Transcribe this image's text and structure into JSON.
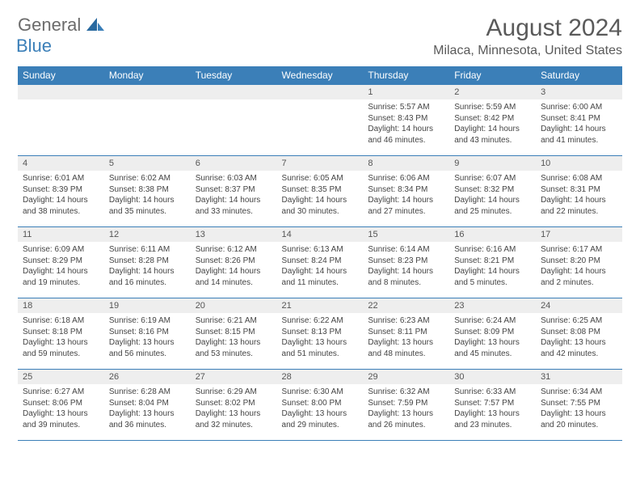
{
  "logo": {
    "general": "General",
    "blue": "Blue"
  },
  "title": "August 2024",
  "location": "Milaca, Minnesota, United States",
  "header_bg": "#3b7fb8",
  "weekdays": [
    "Sunday",
    "Monday",
    "Tuesday",
    "Wednesday",
    "Thursday",
    "Friday",
    "Saturday"
  ],
  "weeks": [
    [
      null,
      null,
      null,
      null,
      {
        "n": "1",
        "sr": "Sunrise: 5:57 AM",
        "ss": "Sunset: 8:43 PM",
        "dl1": "Daylight: 14 hours",
        "dl2": "and 46 minutes."
      },
      {
        "n": "2",
        "sr": "Sunrise: 5:59 AM",
        "ss": "Sunset: 8:42 PM",
        "dl1": "Daylight: 14 hours",
        "dl2": "and 43 minutes."
      },
      {
        "n": "3",
        "sr": "Sunrise: 6:00 AM",
        "ss": "Sunset: 8:41 PM",
        "dl1": "Daylight: 14 hours",
        "dl2": "and 41 minutes."
      }
    ],
    [
      {
        "n": "4",
        "sr": "Sunrise: 6:01 AM",
        "ss": "Sunset: 8:39 PM",
        "dl1": "Daylight: 14 hours",
        "dl2": "and 38 minutes."
      },
      {
        "n": "5",
        "sr": "Sunrise: 6:02 AM",
        "ss": "Sunset: 8:38 PM",
        "dl1": "Daylight: 14 hours",
        "dl2": "and 35 minutes."
      },
      {
        "n": "6",
        "sr": "Sunrise: 6:03 AM",
        "ss": "Sunset: 8:37 PM",
        "dl1": "Daylight: 14 hours",
        "dl2": "and 33 minutes."
      },
      {
        "n": "7",
        "sr": "Sunrise: 6:05 AM",
        "ss": "Sunset: 8:35 PM",
        "dl1": "Daylight: 14 hours",
        "dl2": "and 30 minutes."
      },
      {
        "n": "8",
        "sr": "Sunrise: 6:06 AM",
        "ss": "Sunset: 8:34 PM",
        "dl1": "Daylight: 14 hours",
        "dl2": "and 27 minutes."
      },
      {
        "n": "9",
        "sr": "Sunrise: 6:07 AM",
        "ss": "Sunset: 8:32 PM",
        "dl1": "Daylight: 14 hours",
        "dl2": "and 25 minutes."
      },
      {
        "n": "10",
        "sr": "Sunrise: 6:08 AM",
        "ss": "Sunset: 8:31 PM",
        "dl1": "Daylight: 14 hours",
        "dl2": "and 22 minutes."
      }
    ],
    [
      {
        "n": "11",
        "sr": "Sunrise: 6:09 AM",
        "ss": "Sunset: 8:29 PM",
        "dl1": "Daylight: 14 hours",
        "dl2": "and 19 minutes."
      },
      {
        "n": "12",
        "sr": "Sunrise: 6:11 AM",
        "ss": "Sunset: 8:28 PM",
        "dl1": "Daylight: 14 hours",
        "dl2": "and 16 minutes."
      },
      {
        "n": "13",
        "sr": "Sunrise: 6:12 AM",
        "ss": "Sunset: 8:26 PM",
        "dl1": "Daylight: 14 hours",
        "dl2": "and 14 minutes."
      },
      {
        "n": "14",
        "sr": "Sunrise: 6:13 AM",
        "ss": "Sunset: 8:24 PM",
        "dl1": "Daylight: 14 hours",
        "dl2": "and 11 minutes."
      },
      {
        "n": "15",
        "sr": "Sunrise: 6:14 AM",
        "ss": "Sunset: 8:23 PM",
        "dl1": "Daylight: 14 hours",
        "dl2": "and 8 minutes."
      },
      {
        "n": "16",
        "sr": "Sunrise: 6:16 AM",
        "ss": "Sunset: 8:21 PM",
        "dl1": "Daylight: 14 hours",
        "dl2": "and 5 minutes."
      },
      {
        "n": "17",
        "sr": "Sunrise: 6:17 AM",
        "ss": "Sunset: 8:20 PM",
        "dl1": "Daylight: 14 hours",
        "dl2": "and 2 minutes."
      }
    ],
    [
      {
        "n": "18",
        "sr": "Sunrise: 6:18 AM",
        "ss": "Sunset: 8:18 PM",
        "dl1": "Daylight: 13 hours",
        "dl2": "and 59 minutes."
      },
      {
        "n": "19",
        "sr": "Sunrise: 6:19 AM",
        "ss": "Sunset: 8:16 PM",
        "dl1": "Daylight: 13 hours",
        "dl2": "and 56 minutes."
      },
      {
        "n": "20",
        "sr": "Sunrise: 6:21 AM",
        "ss": "Sunset: 8:15 PM",
        "dl1": "Daylight: 13 hours",
        "dl2": "and 53 minutes."
      },
      {
        "n": "21",
        "sr": "Sunrise: 6:22 AM",
        "ss": "Sunset: 8:13 PM",
        "dl1": "Daylight: 13 hours",
        "dl2": "and 51 minutes."
      },
      {
        "n": "22",
        "sr": "Sunrise: 6:23 AM",
        "ss": "Sunset: 8:11 PM",
        "dl1": "Daylight: 13 hours",
        "dl2": "and 48 minutes."
      },
      {
        "n": "23",
        "sr": "Sunrise: 6:24 AM",
        "ss": "Sunset: 8:09 PM",
        "dl1": "Daylight: 13 hours",
        "dl2": "and 45 minutes."
      },
      {
        "n": "24",
        "sr": "Sunrise: 6:25 AM",
        "ss": "Sunset: 8:08 PM",
        "dl1": "Daylight: 13 hours",
        "dl2": "and 42 minutes."
      }
    ],
    [
      {
        "n": "25",
        "sr": "Sunrise: 6:27 AM",
        "ss": "Sunset: 8:06 PM",
        "dl1": "Daylight: 13 hours",
        "dl2": "and 39 minutes."
      },
      {
        "n": "26",
        "sr": "Sunrise: 6:28 AM",
        "ss": "Sunset: 8:04 PM",
        "dl1": "Daylight: 13 hours",
        "dl2": "and 36 minutes."
      },
      {
        "n": "27",
        "sr": "Sunrise: 6:29 AM",
        "ss": "Sunset: 8:02 PM",
        "dl1": "Daylight: 13 hours",
        "dl2": "and 32 minutes."
      },
      {
        "n": "28",
        "sr": "Sunrise: 6:30 AM",
        "ss": "Sunset: 8:00 PM",
        "dl1": "Daylight: 13 hours",
        "dl2": "and 29 minutes."
      },
      {
        "n": "29",
        "sr": "Sunrise: 6:32 AM",
        "ss": "Sunset: 7:59 PM",
        "dl1": "Daylight: 13 hours",
        "dl2": "and 26 minutes."
      },
      {
        "n": "30",
        "sr": "Sunrise: 6:33 AM",
        "ss": "Sunset: 7:57 PM",
        "dl1": "Daylight: 13 hours",
        "dl2": "and 23 minutes."
      },
      {
        "n": "31",
        "sr": "Sunrise: 6:34 AM",
        "ss": "Sunset: 7:55 PM",
        "dl1": "Daylight: 13 hours",
        "dl2": "and 20 minutes."
      }
    ]
  ]
}
